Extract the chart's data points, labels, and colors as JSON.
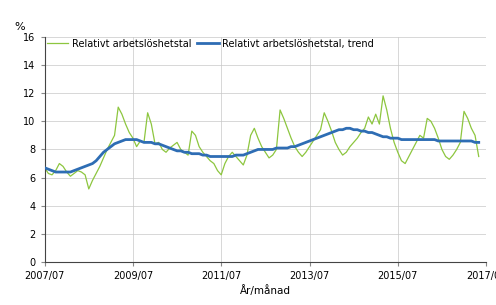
{
  "title": "",
  "ylabel": "%",
  "xlabel": "År/månad",
  "ylim": [
    0,
    16
  ],
  "yticks": [
    0,
    2,
    4,
    6,
    8,
    10,
    12,
    14,
    16
  ],
  "xtick_labels": [
    "2007/07",
    "2009/07",
    "2011/07",
    "2013/07",
    "2015/07",
    "2017/07"
  ],
  "legend_raw": "Relativt arbetslöshetstal",
  "legend_trend": "Relativt arbetslöshetstal, trend",
  "raw_color": "#8dc63f",
  "trend_color": "#2e6db4",
  "raw_linewidth": 0.9,
  "trend_linewidth": 2.0,
  "background_color": "#ffffff",
  "grid_color": "#c8c8c8",
  "raw_data": [
    6.7,
    6.3,
    6.2,
    6.5,
    7.0,
    6.8,
    6.4,
    6.1,
    6.3,
    6.5,
    6.4,
    6.2,
    5.2,
    5.8,
    6.3,
    6.8,
    7.4,
    8.0,
    8.5,
    9.0,
    11.0,
    10.5,
    9.8,
    9.2,
    8.8,
    8.2,
    8.6,
    8.5,
    10.6,
    9.8,
    8.4,
    8.5,
    8.0,
    7.8,
    8.1,
    8.3,
    8.5,
    8.0,
    7.8,
    7.6,
    9.3,
    9.0,
    8.2,
    7.8,
    7.5,
    7.2,
    7.0,
    6.5,
    6.2,
    7.0,
    7.5,
    7.8,
    7.5,
    7.2,
    6.9,
    7.6,
    9.0,
    9.5,
    8.8,
    8.2,
    7.8,
    7.4,
    7.6,
    8.0,
    10.8,
    10.2,
    9.5,
    8.8,
    8.2,
    7.8,
    7.5,
    7.8,
    8.2,
    8.6,
    9.0,
    9.4,
    10.6,
    10.0,
    9.3,
    8.5,
    8.0,
    7.6,
    7.8,
    8.2,
    8.5,
    8.8,
    9.2,
    9.5,
    10.3,
    9.8,
    10.5,
    9.8,
    11.8,
    10.8,
    9.5,
    8.5,
    7.8,
    7.2,
    7.0,
    7.5,
    8.0,
    8.5,
    9.0,
    8.8,
    10.2,
    10.0,
    9.5,
    8.8,
    8.0,
    7.5,
    7.3,
    7.6,
    8.0,
    8.5,
    10.7,
    10.2,
    9.5,
    9.0,
    7.5
  ],
  "trend_data": [
    6.7,
    6.6,
    6.5,
    6.4,
    6.4,
    6.4,
    6.4,
    6.4,
    6.5,
    6.6,
    6.7,
    6.8,
    6.9,
    7.0,
    7.2,
    7.5,
    7.8,
    8.0,
    8.2,
    8.4,
    8.5,
    8.6,
    8.7,
    8.7,
    8.7,
    8.7,
    8.6,
    8.5,
    8.5,
    8.5,
    8.4,
    8.4,
    8.3,
    8.2,
    8.1,
    8.0,
    7.9,
    7.9,
    7.8,
    7.8,
    7.7,
    7.7,
    7.7,
    7.6,
    7.6,
    7.5,
    7.5,
    7.5,
    7.5,
    7.5,
    7.5,
    7.5,
    7.6,
    7.6,
    7.6,
    7.7,
    7.8,
    7.9,
    8.0,
    8.0,
    8.0,
    8.0,
    8.0,
    8.1,
    8.1,
    8.1,
    8.1,
    8.2,
    8.2,
    8.3,
    8.4,
    8.5,
    8.6,
    8.7,
    8.8,
    8.9,
    9.0,
    9.1,
    9.2,
    9.3,
    9.4,
    9.4,
    9.5,
    9.5,
    9.4,
    9.4,
    9.3,
    9.3,
    9.2,
    9.2,
    9.1,
    9.0,
    8.9,
    8.9,
    8.8,
    8.8,
    8.8,
    8.7,
    8.7,
    8.7,
    8.7,
    8.7,
    8.7,
    8.7,
    8.7,
    8.7,
    8.7,
    8.6,
    8.6,
    8.6,
    8.6,
    8.6,
    8.6,
    8.6,
    8.6,
    8.6,
    8.6,
    8.5,
    8.5
  ]
}
